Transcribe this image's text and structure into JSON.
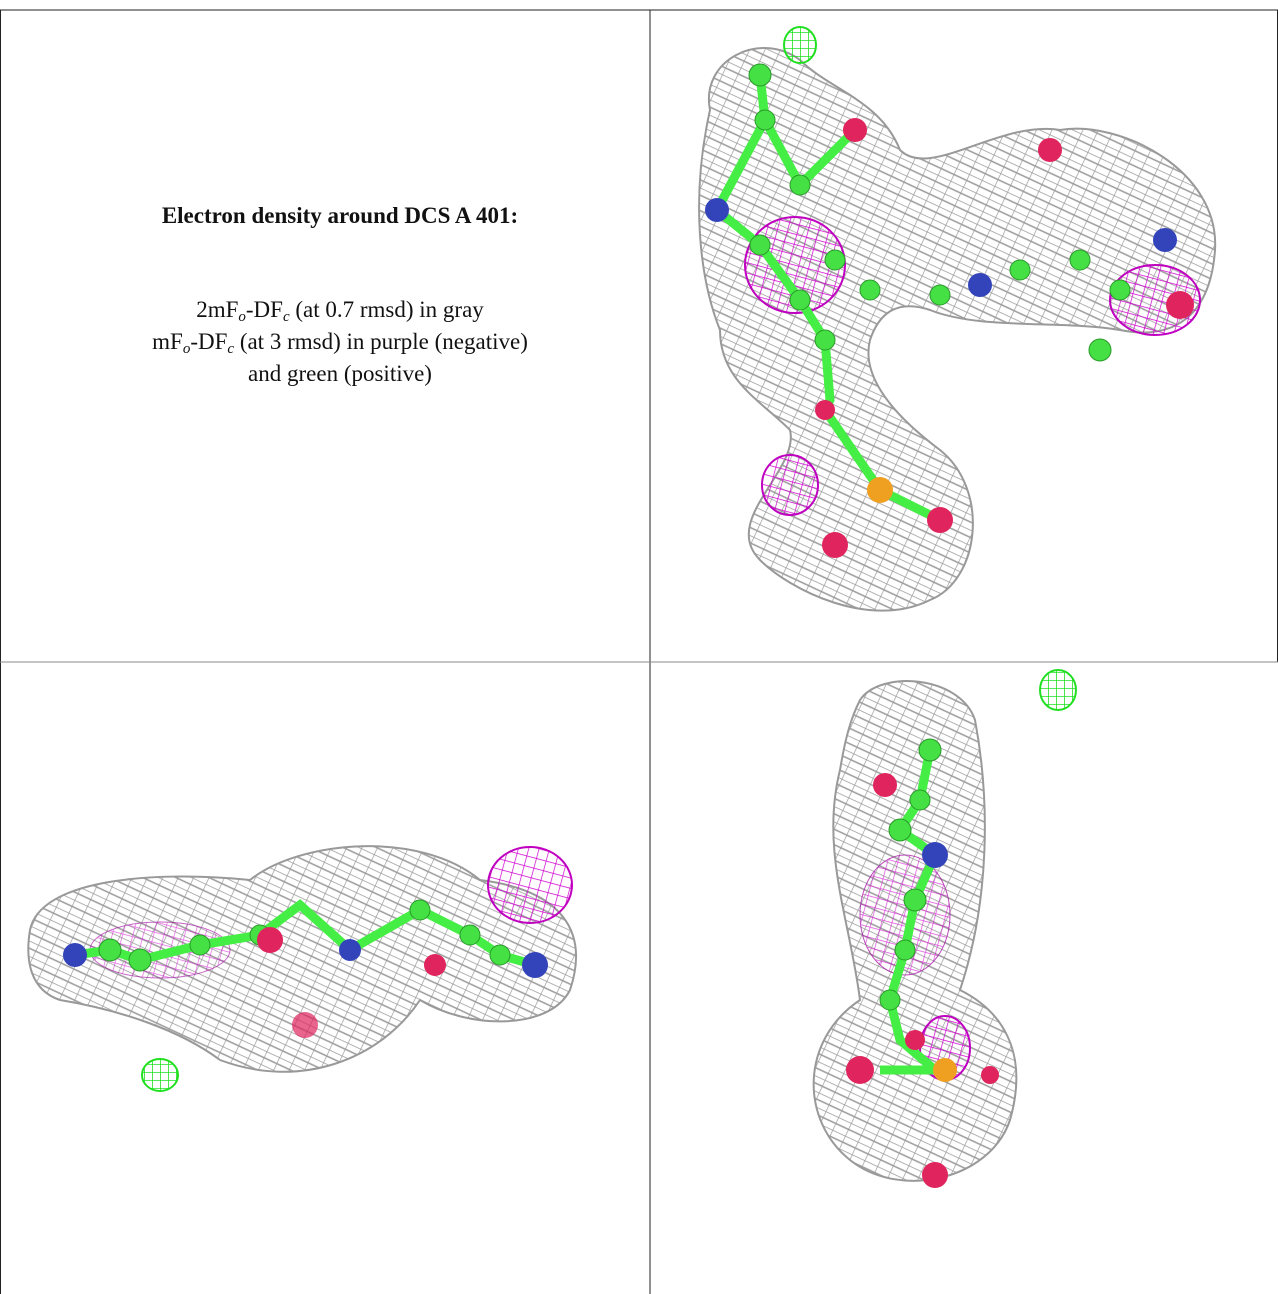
{
  "caption": {
    "title": "Electron density around DCS A 401:",
    "line1": [
      "2mF",
      "o",
      "-DF",
      "c",
      " (at 0.7 rmsd) in gray"
    ],
    "line2": [
      "mF",
      "o",
      "-DF",
      "c",
      " (at 3 rmsd) in purple (negative)"
    ],
    "line3": "and green (positive)"
  }
}
